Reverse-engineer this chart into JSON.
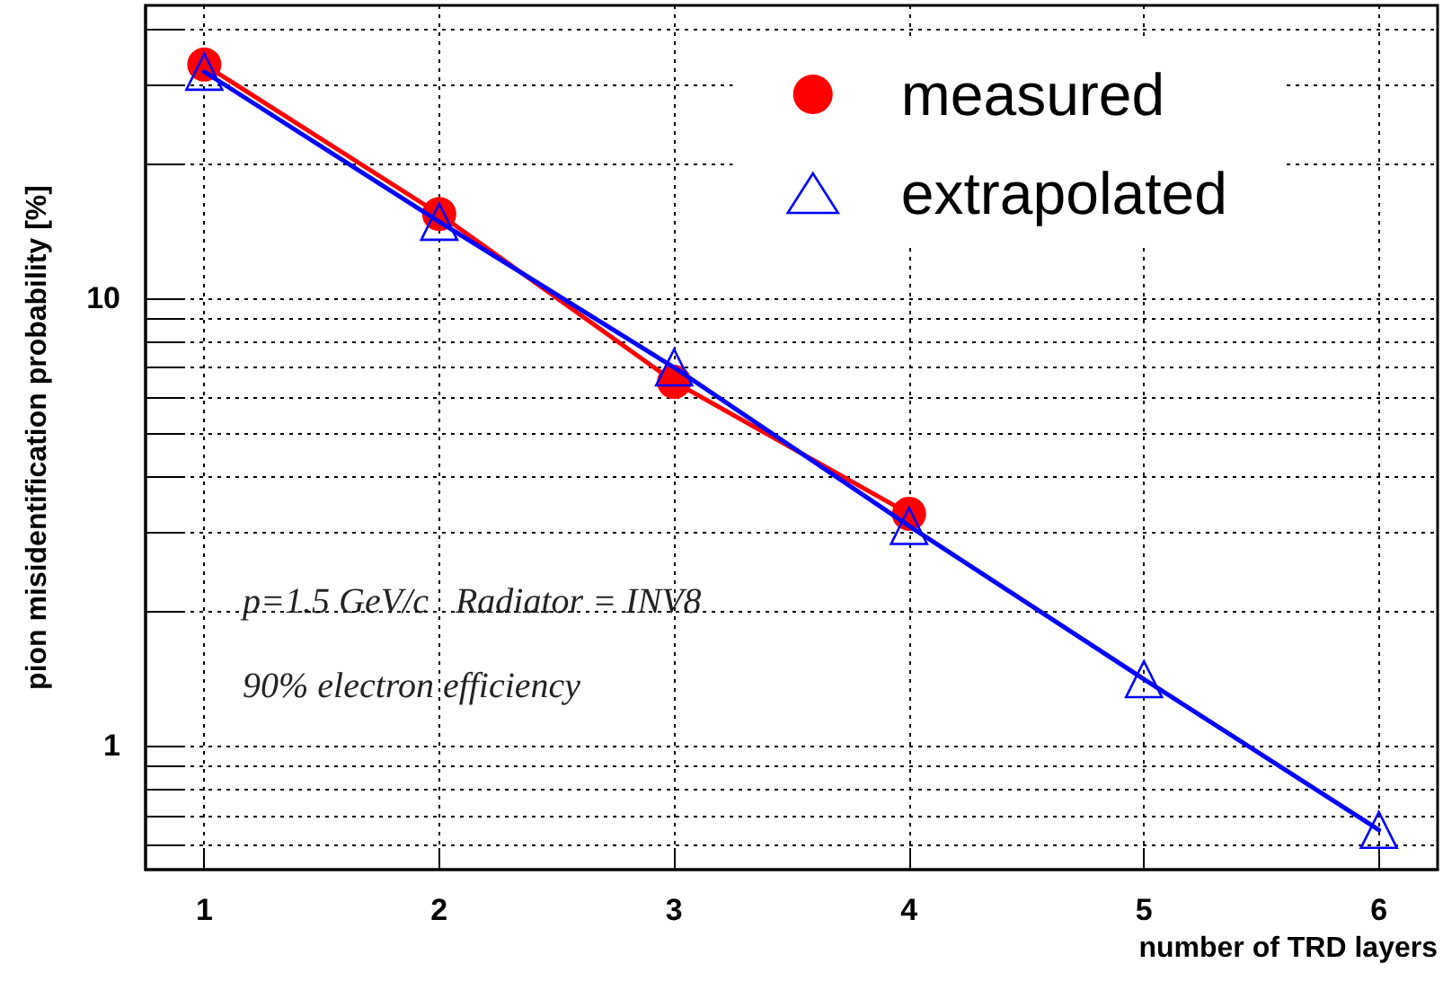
{
  "chart_data": {
    "type": "line",
    "xlabel": "number of TRD layers",
    "ylabel": "pion misidentification probability [%]",
    "x": [
      1,
      2,
      3,
      4,
      5,
      6
    ],
    "series": [
      {
        "name": "extrapolated",
        "color": "#0000ff",
        "marker": "triangle",
        "values": [
          32,
          14.8,
          7.0,
          3.1,
          1.41,
          0.65
        ]
      },
      {
        "name": "measured",
        "color": "#ff0000",
        "marker": "circle",
        "x": [
          1,
          2,
          3,
          4
        ],
        "values": [
          33.2,
          15.4,
          6.5,
          3.3
        ]
      }
    ],
    "xlim": [
      0.75,
      6.25
    ],
    "xticks": [
      1,
      2,
      3,
      4,
      5,
      6
    ],
    "ylim": [
      0.53,
      45
    ],
    "log": "y",
    "yticks": [
      {
        "value": 0.6,
        "label": null
      },
      {
        "value": 0.7,
        "label": null
      },
      {
        "value": 0.8,
        "label": null
      },
      {
        "value": 0.9,
        "label": null
      },
      1,
      {
        "value": 2,
        "label": null
      },
      {
        "value": 3,
        "label": null
      },
      {
        "value": 4,
        "label": null
      },
      {
        "value": 5,
        "label": null
      },
      {
        "value": 6,
        "label": null
      },
      {
        "value": 7,
        "label": null
      },
      {
        "value": 8,
        "label": null
      },
      {
        "value": 9,
        "label": null
      },
      10,
      {
        "value": 20,
        "label": null
      },
      {
        "value": 30,
        "label": null
      },
      {
        "value": 40,
        "label": null
      }
    ],
    "grid": true,
    "legend": "top right",
    "line_style": "solid",
    "annotations": [
      "p=1.5 GeV/c   Radiator = INV8",
      "90% electron efficiency"
    ]
  }
}
